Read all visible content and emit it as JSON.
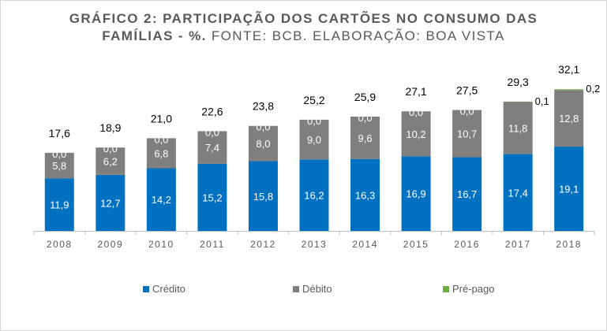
{
  "title": {
    "bold_line1": "GRÁFICO 2: PARTICIPAÇÃO DOS CARTÕES NO CONSUMO DAS",
    "bold_line2": "FAMÍLIAS - %.",
    "normal_line2": "FONTE: BCB. ELABORAÇÃO: BOA VISTA"
  },
  "colors": {
    "credito": "#0070c0",
    "debito": "#7f7f7f",
    "prepago": "#70ad47"
  },
  "chart_data": {
    "type": "bar",
    "stacked": true,
    "categories": [
      "2008",
      "2009",
      "2010",
      "2011",
      "2012",
      "2013",
      "2014",
      "2015",
      "2016",
      "2017",
      "2018"
    ],
    "series": [
      {
        "name": "Crédito",
        "values": [
          11.9,
          12.7,
          14.2,
          15.2,
          15.8,
          16.2,
          16.3,
          16.9,
          16.7,
          17.4,
          19.1
        ],
        "labels": [
          "11,9",
          "12,7",
          "14,2",
          "15,2",
          "15,8",
          "16,2",
          "16,3",
          "16,9",
          "16,7",
          "17,4",
          "19,1"
        ]
      },
      {
        "name": "Débito",
        "values": [
          5.8,
          6.2,
          6.8,
          7.4,
          8.0,
          9.0,
          9.6,
          10.2,
          10.7,
          11.8,
          12.8
        ],
        "labels": [
          "5,8",
          "6,2",
          "6,8",
          "7,4",
          "8,0",
          "9,0",
          "9,6",
          "10,2",
          "10,7",
          "11,8",
          "12,8"
        ]
      },
      {
        "name": "Pré-pago",
        "values": [
          0.0,
          0.0,
          0.0,
          0.0,
          0.0,
          0.0,
          0.0,
          0.0,
          0.0,
          0.1,
          0.2
        ],
        "labels": [
          "0,0",
          "0,0",
          "0,0",
          "0,0",
          "0,0",
          "0,0",
          "0,0",
          "0,0",
          "0,0",
          "0,1",
          "0,2"
        ]
      }
    ],
    "totals": [
      17.6,
      18.9,
      21.0,
      22.6,
      23.8,
      25.2,
      25.9,
      27.1,
      27.5,
      29.3,
      32.1
    ],
    "total_labels": [
      "17,6",
      "18,9",
      "21,0",
      "22,6",
      "23,8",
      "25,2",
      "25,9",
      "27,1",
      "27,5",
      "29,3",
      "32,1"
    ],
    "legend": [
      "Crédito",
      "Débito",
      "Pré-pago"
    ],
    "legend_position": "bottom",
    "grid": false,
    "ylim": [
      0,
      35
    ]
  }
}
